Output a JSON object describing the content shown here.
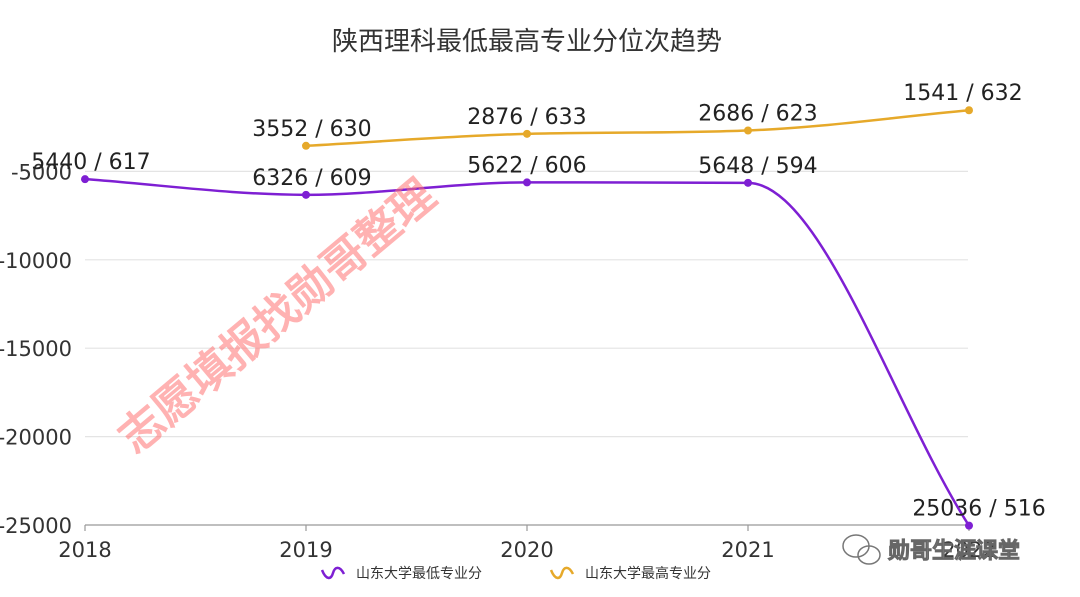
{
  "chart_data": {
    "type": "line",
    "title": "陕西理科最低最高专业分位次趋势",
    "categories": [
      "2018",
      "2019",
      "2020",
      "2021",
      "2022"
    ],
    "x_tick_labels": [
      "2018",
      "2019",
      "2020",
      "2021",
      "2022"
    ],
    "ylim": [
      -25000,
      0
    ],
    "y_ticks": [
      -5000,
      -10000,
      -15000,
      -20000,
      -25000
    ],
    "y_tick_labels": [
      "-5000",
      "-10000",
      "-15000",
      "-20000",
      "-25000"
    ],
    "grid": true,
    "legend_position": "bottom",
    "series": [
      {
        "name": "山东大学最低专业分",
        "color": "#7e1fd3",
        "values": [
          -5440,
          -6326,
          -5622,
          -5648,
          -25036
        ],
        "labels": [
          "5440 / 617",
          "6326 / 609",
          "5622 / 606",
          "5648 / 594",
          "25036 / 516"
        ]
      },
      {
        "name": "山东大学最高专业分",
        "color": "#e6a92a",
        "values": [
          null,
          -3552,
          -2876,
          -2686,
          -1541
        ],
        "labels": [
          "",
          "3552 / 630",
          "2876 / 633",
          "2686 / 623",
          "1541 / 632"
        ]
      }
    ]
  },
  "watermark": {
    "text": "志愿填报找勋哥整理",
    "color": "#ff7373"
  },
  "wechat_badge": {
    "text": "勋哥生涯课堂",
    "icon": "wechat-icon"
  }
}
